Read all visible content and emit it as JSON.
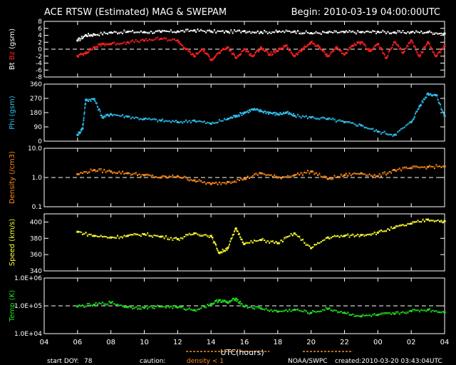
{
  "header": {
    "title": "ACE RTSW (Estimated) MAG & SWEPAM",
    "begin": "Begin: 2010-03-19 04:00:00UTC"
  },
  "footer": {
    "start_doy_label": "start DOY:",
    "start_doy_value": "78",
    "caution_label": "caution:",
    "caution_note": "density < 1",
    "source": "NOAA/SWPC",
    "created": "created:2010-03-20 03:43:04UTC"
  },
  "colors": {
    "bt": "#ffffff",
    "bz": "#ff2020",
    "phi": "#30c0f0",
    "density": "#ff8c1a",
    "speed": "#ffff30",
    "temp": "#20e020",
    "caution": "#ff8c1a"
  },
  "chart_data": [
    {
      "type": "scatter",
      "ylabel_parts": [
        "Bt",
        "Bz",
        "(gsm)"
      ],
      "ylim": [
        -8,
        8
      ],
      "yticks": [
        "8",
        "6",
        "4",
        "2",
        "0",
        "-2",
        "-4",
        "-6",
        "-8"
      ],
      "yticks_values": [
        8,
        6,
        4,
        2,
        0,
        -2,
        -4,
        -6,
        -8
      ],
      "ref_line": 0,
      "series": [
        {
          "name": "Bt",
          "x": [
            6.0,
            6.5,
            7.0,
            8.0,
            9.0,
            10.0,
            11.0,
            12.0,
            13.0,
            14.0,
            15.0,
            16.0,
            17.0,
            18.0,
            19.0,
            20.0,
            21.0,
            22.0,
            23.0,
            24.0,
            25.0,
            26.0,
            27.0,
            28.0
          ],
          "y": [
            2.5,
            4.0,
            4.2,
            4.8,
            5.0,
            4.9,
            5.0,
            5.1,
            5.4,
            5.1,
            5.0,
            5.2,
            4.9,
            5.0,
            5.1,
            4.6,
            4.8,
            4.9,
            4.9,
            5.0,
            4.8,
            4.9,
            4.9,
            4.5
          ]
        },
        {
          "name": "Bz",
          "x": [
            6.0,
            6.5,
            7.0,
            7.5,
            8.0,
            9.0,
            10.0,
            11.0,
            12.0,
            12.5,
            13.0,
            13.5,
            14.0,
            14.5,
            15.0,
            15.5,
            16.0,
            16.5,
            17.0,
            17.5,
            18.0,
            18.5,
            19.0,
            19.5,
            20.0,
            20.5,
            21.0,
            21.5,
            22.0,
            22.5,
            23.0,
            23.5,
            24.0,
            24.5,
            25.0,
            25.5,
            26.0,
            26.5,
            27.0,
            27.5,
            28.0
          ],
          "y": [
            -2.0,
            -1.0,
            0.5,
            1.5,
            1.5,
            2.0,
            2.5,
            3.0,
            2.5,
            0.0,
            -2.0,
            0.0,
            -3.0,
            -1.0,
            0.5,
            -2.5,
            0.0,
            -2.0,
            0.5,
            -1.5,
            -0.5,
            1.0,
            -2.0,
            0.0,
            2.0,
            0.5,
            -2.0,
            0.5,
            -1.5,
            1.0,
            2.0,
            -0.5,
            1.5,
            -2.5,
            2.0,
            -1.0,
            2.5,
            -2.0,
            2.0,
            -2.0,
            1.0
          ]
        }
      ]
    },
    {
      "type": "scatter",
      "ylabel_parts": [
        "Phi (gsm)"
      ],
      "ylim": [
        0,
        360
      ],
      "yticks": [
        "360",
        "270",
        "180",
        "90",
        "0"
      ],
      "yticks_values": [
        360,
        270,
        180,
        90,
        0
      ],
      "series": [
        {
          "name": "Phi",
          "x": [
            6.0,
            6.3,
            6.5,
            7.0,
            7.5,
            8.0,
            9.0,
            10.0,
            11.0,
            12.0,
            13.0,
            14.0,
            15.0,
            15.5,
            16.0,
            16.5,
            17.0,
            17.5,
            18.0,
            18.5,
            19.0,
            20.0,
            21.0,
            22.0,
            23.0,
            24.0,
            25.0,
            26.0,
            26.5,
            27.0,
            27.5,
            28.0
          ],
          "y": [
            40,
            80,
            260,
            265,
            150,
            170,
            155,
            140,
            130,
            120,
            130,
            110,
            140,
            160,
            180,
            200,
            190,
            180,
            170,
            180,
            160,
            150,
            140,
            120,
            100,
            60,
            40,
            120,
            220,
            300,
            290,
            160
          ]
        }
      ]
    },
    {
      "type": "scatter",
      "ylabel_parts": [
        "Density (/cm3)"
      ],
      "yscale": "log",
      "ylim": [
        0.1,
        10
      ],
      "yticks": [
        "10.0",
        "1.0",
        "0.1"
      ],
      "yticks_values": [
        10,
        1,
        0.1
      ],
      "ref_line": 1,
      "series": [
        {
          "name": "Density",
          "x": [
            6.0,
            7.0,
            8.0,
            9.0,
            10.0,
            11.0,
            12.0,
            13.0,
            14.0,
            15.0,
            16.0,
            17.0,
            18.0,
            19.0,
            20.0,
            21.0,
            22.0,
            23.0,
            24.0,
            25.0,
            26.0,
            27.0,
            28.0
          ],
          "y": [
            1.3,
            1.8,
            1.6,
            1.4,
            1.2,
            1.0,
            1.1,
            0.8,
            0.6,
            0.7,
            0.9,
            1.4,
            1.0,
            1.2,
            1.6,
            0.9,
            1.2,
            1.4,
            1.1,
            1.8,
            2.1,
            2.3,
            2.4
          ]
        }
      ]
    },
    {
      "type": "scatter",
      "ylabel_parts": [
        "Speed (km/s)"
      ],
      "ylim": [
        340,
        410
      ],
      "yticks": [
        "400",
        "380",
        "360",
        "340"
      ],
      "yticks_values": [
        400,
        380,
        360,
        340
      ],
      "series": [
        {
          "name": "Speed",
          "x": [
            6.0,
            7.0,
            8.0,
            9.0,
            10.0,
            11.0,
            12.0,
            13.0,
            14.0,
            14.5,
            15.0,
            15.5,
            16.0,
            17.0,
            18.0,
            19.0,
            20.0,
            21.0,
            22.0,
            23.0,
            24.0,
            25.0,
            26.0,
            27.0,
            28.0
          ],
          "y": [
            388,
            383,
            381,
            383,
            385,
            382,
            379,
            386,
            383,
            362,
            368,
            392,
            373,
            378,
            374,
            386,
            368,
            381,
            383,
            384,
            387,
            393,
            398,
            403,
            401
          ]
        }
      ]
    },
    {
      "type": "scatter",
      "ylabel_parts": [
        "Temp (K)"
      ],
      "yscale": "log",
      "ylim": [
        10000,
        1000000
      ],
      "yticks": [
        "1.0E+06",
        "1.0E+05",
        "1.0E+04"
      ],
      "yticks_values": [
        1000000,
        100000,
        10000
      ],
      "ref_line": 100000,
      "series": [
        {
          "name": "Temp",
          "x": [
            6.0,
            7.0,
            8.0,
            9.0,
            10.0,
            11.0,
            12.0,
            13.0,
            14.0,
            14.5,
            15.0,
            15.5,
            16.0,
            17.0,
            18.0,
            19.0,
            20.0,
            21.0,
            22.0,
            23.0,
            24.0,
            25.0,
            26.0,
            27.0,
            28.0
          ],
          "y": [
            95000,
            110000,
            130000,
            90000,
            85000,
            95000,
            88000,
            70000,
            115000,
            160000,
            130000,
            180000,
            95000,
            80000,
            62000,
            72000,
            56000,
            78000,
            56000,
            42000,
            47000,
            52000,
            65000,
            72000,
            58000
          ]
        }
      ]
    }
  ],
  "xaxis": {
    "label": "UTC(hours)",
    "ticks": [
      "04",
      "06",
      "08",
      "10",
      "12",
      "14",
      "16",
      "18",
      "20",
      "22",
      "00",
      "02",
      "04"
    ],
    "tick_hours": [
      4,
      6,
      8,
      10,
      12,
      14,
      16,
      18,
      20,
      22,
      24,
      26,
      28
    ],
    "range": [
      4,
      28
    ]
  }
}
